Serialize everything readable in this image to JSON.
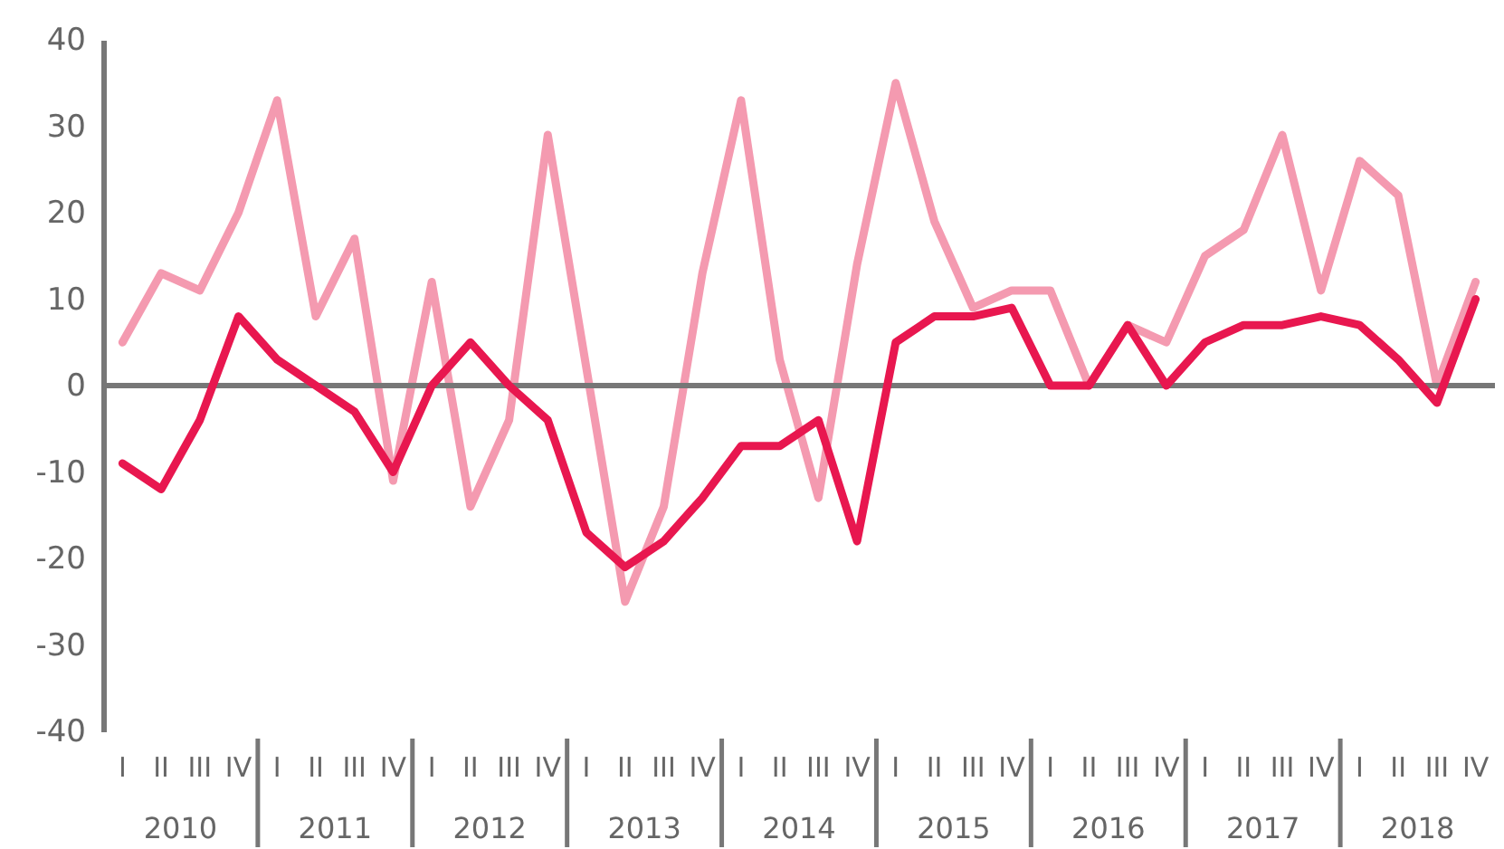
{
  "chart_data": {
    "type": "line",
    "categories": [
      "I",
      "II",
      "III",
      "IV",
      "I",
      "II",
      "III",
      "IV",
      "I",
      "II",
      "III",
      "IV",
      "I",
      "II",
      "III",
      "IV",
      "I",
      "II",
      "III",
      "IV",
      "I",
      "II",
      "III",
      "IV",
      "I",
      "II",
      "III",
      "IV",
      "I",
      "II",
      "III",
      "IV",
      "I",
      "II",
      "III",
      "IV"
    ],
    "series": [
      {
        "color": "#f49ab0",
        "values": [
          5,
          13,
          11,
          20,
          33,
          8,
          17,
          -11,
          12,
          -14,
          -4,
          29,
          2,
          -25,
          -14,
          13,
          33,
          3,
          -13,
          14,
          35,
          19,
          9,
          11,
          11,
          0,
          7,
          5,
          15,
          18,
          29,
          11,
          26,
          22,
          0,
          12
        ]
      },
      {
        "color": "#e8174f",
        "values": [
          -9,
          -12,
          -4,
          8,
          3,
          0,
          -3,
          -10,
          0,
          5,
          0,
          -4,
          -17,
          -21,
          -18,
          -13,
          -7,
          -7,
          -4,
          -18,
          5,
          8,
          8,
          9,
          0,
          0,
          7,
          0,
          5,
          7,
          7,
          8,
          7,
          3,
          -2,
          10
        ]
      }
    ],
    "annotations": [
      "2010",
      "2011",
      "2012",
      "2013",
      "2014",
      "2015",
      "2016",
      "2017",
      "2018"
    ],
    "ylim": [
      -40,
      40
    ],
    "yticks": [
      -40,
      -30,
      -20,
      -10,
      0,
      10,
      20,
      30,
      40
    ],
    "marker": "none",
    "line_style": "solid"
  }
}
